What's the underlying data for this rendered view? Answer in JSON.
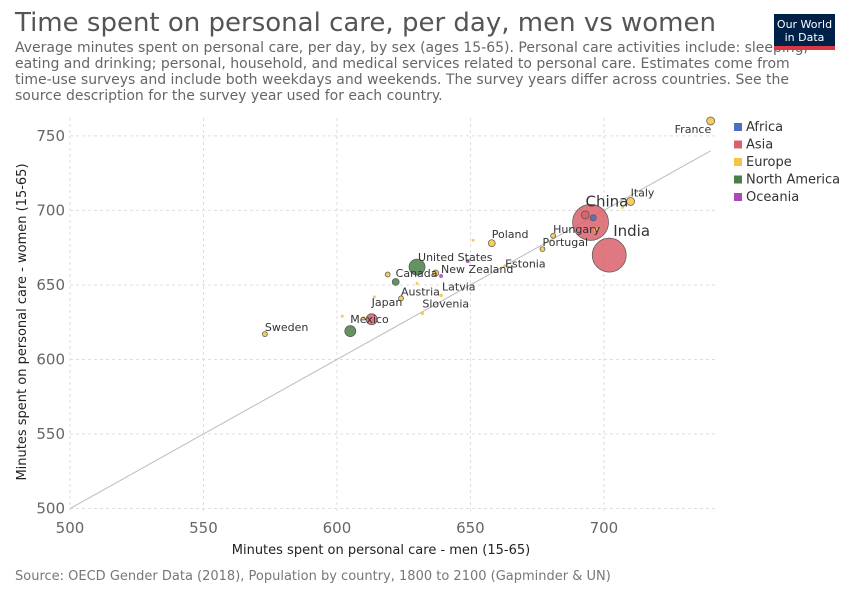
{
  "title": "Time spent on personal care, per day, men vs women",
  "subtitle": "Average minutes spent on personal care, per day, by sex (ages 15-65). Personal care activities include: sleeping, eating and drinking; personal, household, and medical services related to personal care. Estimates come from time-use surveys and include both weekdays and weekends. The survey years differ across countries. See the source description for the survey year used for each country.",
  "logo": {
    "line1": "Our World",
    "line2": "in Data"
  },
  "source": "Source: OECD Gender Data (2018), Population by country, 1800 to 2100 (Gapminder & UN)",
  "chart_data": {
    "type": "scatter",
    "xlabel": "Minutes spent on personal care - men (15-65)",
    "ylabel": "Minutes spent on personal care - women (15-65)",
    "xlim": [
      500,
      742
    ],
    "ylim": [
      497,
      762
    ],
    "xticks": [
      "500",
      "550",
      "600",
      "650",
      "700"
    ],
    "yticks": [
      "500",
      "550",
      "600",
      "650",
      "700",
      "750"
    ],
    "grid": true,
    "legend_position": "right",
    "diagonal_reference_line": true,
    "legend": [
      {
        "name": "Africa",
        "color": "#4c6fbf"
      },
      {
        "name": "Asia",
        "color": "#d9606b"
      },
      {
        "name": "Europe",
        "color": "#f5c342"
      },
      {
        "name": "North America",
        "color": "#4a7f48"
      },
      {
        "name": "Oceania",
        "color": "#a84ab3"
      }
    ],
    "points": [
      {
        "label": "France",
        "x": 740,
        "y": 760,
        "region": "Europe",
        "size": 4
      },
      {
        "label": "Italy",
        "x": 710,
        "y": 706,
        "region": "Europe",
        "size": 4
      },
      {
        "label": "China",
        "x": 695,
        "y": 692,
        "region": "Asia",
        "size": 18
      },
      {
        "label": "India",
        "x": 702,
        "y": 670,
        "region": "Asia",
        "size": 17
      },
      {
        "label": "Hungary",
        "x": 681,
        "y": 683,
        "region": "Europe",
        "size": 2.5
      },
      {
        "label": "Portugal",
        "x": 677,
        "y": 674,
        "region": "Europe",
        "size": 2.5
      },
      {
        "label": "Poland",
        "x": 658,
        "y": 678,
        "region": "Europe",
        "size": 3.5
      },
      {
        "label": "Estonia",
        "x": 663,
        "y": 663,
        "region": "Europe",
        "size": 1.5
      },
      {
        "label": "United States",
        "x": 630,
        "y": 662,
        "region": "North America",
        "size": 8
      },
      {
        "label": "Canada",
        "x": 622,
        "y": 652,
        "region": "North America",
        "size": 3.5
      },
      {
        "label": "New Zealand",
        "x": 639,
        "y": 656,
        "region": "Oceania",
        "size": 2
      },
      {
        "label": "Austria",
        "x": 624,
        "y": 641,
        "region": "Europe",
        "size": 2.5
      },
      {
        "label": "Latvia",
        "x": 639,
        "y": 643,
        "region": "Europe",
        "size": 1.8
      },
      {
        "label": "Slovenia",
        "x": 632,
        "y": 631,
        "region": "Europe",
        "size": 1.8
      },
      {
        "label": "Japan",
        "x": 613,
        "y": 627,
        "region": "Asia",
        "size": 5.5
      },
      {
        "label": "Mexico",
        "x": 605,
        "y": 619,
        "region": "North America",
        "size": 5.5
      },
      {
        "label": "Sweden",
        "x": 573,
        "y": 617,
        "region": "Europe",
        "size": 2.5
      },
      {
        "label": "",
        "x": 693,
        "y": 697,
        "region": "Asia",
        "size": 4
      },
      {
        "label": "",
        "x": 696,
        "y": 695,
        "region": "Africa",
        "size": 3
      },
      {
        "label": "",
        "x": 707,
        "y": 702,
        "region": "Europe",
        "size": 1.5
      },
      {
        "label": "",
        "x": 697,
        "y": 687,
        "region": "Europe",
        "size": 2
      },
      {
        "label": "",
        "x": 651,
        "y": 680,
        "region": "Europe",
        "size": 1.5
      },
      {
        "label": "",
        "x": 649,
        "y": 666,
        "region": "Oceania",
        "size": 2
      },
      {
        "label": "",
        "x": 619,
        "y": 657,
        "region": "Europe",
        "size": 2.5
      },
      {
        "label": "",
        "x": 637,
        "y": 658,
        "region": "Europe",
        "size": 3
      },
      {
        "label": "",
        "x": 614,
        "y": 642,
        "region": "Europe",
        "size": 1.5
      },
      {
        "label": "",
        "x": 630,
        "y": 651,
        "region": "Europe",
        "size": 1.5
      },
      {
        "label": "",
        "x": 602,
        "y": 629,
        "region": "Europe",
        "size": 1.5
      },
      {
        "label": "",
        "x": 610,
        "y": 628,
        "region": "Europe",
        "size": 1.5
      }
    ]
  }
}
